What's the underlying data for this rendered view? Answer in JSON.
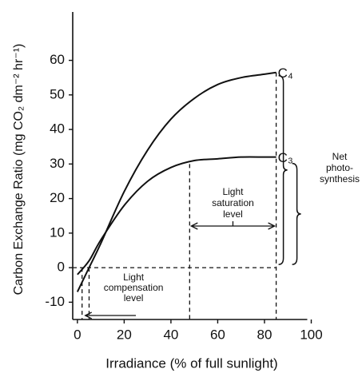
{
  "chart_data": {
    "type": "line",
    "x_label": "Irradiance (% of full sunlight)",
    "y_label": "Carbon Exchange Ratio (mg CO₂ dm⁻² hr⁻¹)",
    "x": [
      0,
      5,
      10,
      20,
      30,
      40,
      50,
      60,
      70,
      80,
      85
    ],
    "series": [
      {
        "name": "C₄",
        "color": "#111111",
        "values": [
          -7,
          0,
          7,
          22,
          34,
          43,
          49,
          53,
          55,
          56,
          56.5
        ]
      },
      {
        "name": "C₃",
        "color": "#111111",
        "values": [
          -2,
          2,
          8,
          18,
          25,
          29,
          31,
          31.5,
          32,
          32,
          32
        ]
      }
    ],
    "xlim": [
      -2,
      100
    ],
    "ylim": [
      -15,
      74
    ],
    "xticks": [
      0,
      20,
      40,
      60,
      80,
      100
    ],
    "yticks": [
      -10,
      0,
      10,
      20,
      30,
      40,
      50,
      60
    ],
    "compensation_points": [
      2,
      5
    ],
    "saturation_points": [
      48,
      85
    ],
    "saturation_label": [
      "Light",
      "saturation",
      "level"
    ],
    "compensation_label": [
      "Light",
      "compensation",
      "level"
    ],
    "net_label": [
      "Net",
      "photo-",
      "synthesis"
    ]
  }
}
